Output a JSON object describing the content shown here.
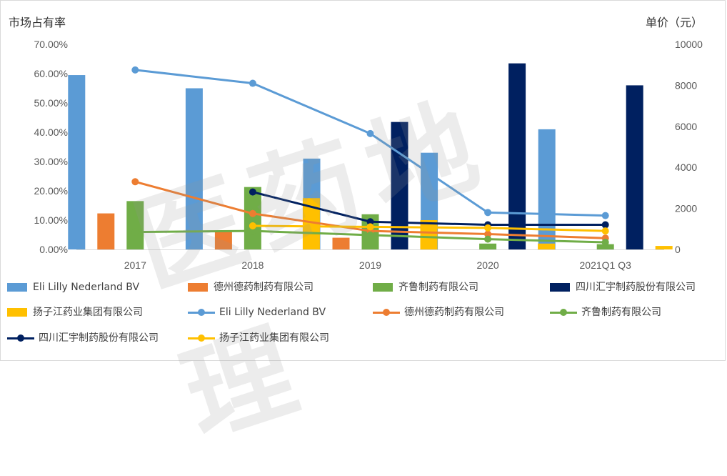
{
  "axis_titles": {
    "left": "市场占有率",
    "right": "单价（元）"
  },
  "chart_data": {
    "type": "bar",
    "categories": [
      "2017",
      "2018",
      "2019",
      "2020",
      "2021Q1 Q3"
    ],
    "left_axis": {
      "min": 0,
      "max": 0.7,
      "ticks": [
        "0.00%",
        "10.00%",
        "20.00%",
        "30.00%",
        "40.00%",
        "50.00%",
        "60.00%",
        "70.00%"
      ]
    },
    "right_axis": {
      "min": 0,
      "max": 10000,
      "ticks": [
        "0",
        "2000",
        "4000",
        "6000",
        "8000",
        "10000"
      ]
    },
    "bar_series": [
      {
        "name": "Eli Lilly Nederland BV",
        "color": "#5b9bd5",
        "values": [
          0.595,
          0.55,
          0.31,
          0.33,
          0.41
        ]
      },
      {
        "name": "德州德药制药有限公司",
        "color": "#ed7d31",
        "values": [
          0.123,
          0.06,
          0.04,
          0.0,
          0.0
        ]
      },
      {
        "name": "齐鲁制药有限公司",
        "color": "#70ad47",
        "values": [
          0.165,
          0.213,
          0.12,
          0.02,
          0.018
        ]
      },
      {
        "name": "四川汇宇制药股份有限公司",
        "color": "#002060",
        "values": [
          null,
          null,
          0.435,
          0.635,
          0.56
        ]
      },
      {
        "name": "扬子江药业集团有限公司",
        "color": "#ffc000",
        "values": [
          null,
          0.175,
          0.1,
          0.02,
          0.012
        ]
      }
    ],
    "line_series": [
      {
        "name": "Eli Lilly Nederland BV",
        "color": "#5b9bd5",
        "values": [
          8750,
          8100,
          5650,
          1800,
          1650
        ]
      },
      {
        "name": "德州德药制药有限公司",
        "color": "#ed7d31",
        "values": [
          3300,
          1750,
          900,
          750,
          550
        ]
      },
      {
        "name": "齐鲁制药有限公司",
        "color": "#70ad47",
        "values": [
          850,
          900,
          700,
          500,
          350
        ]
      },
      {
        "name": "四川汇宇制药股份有限公司",
        "color": "#002060",
        "values": [
          null,
          2800,
          1350,
          1200,
          1200
        ]
      },
      {
        "name": "扬子江药业集团有限公司",
        "color": "#ffc000",
        "values": [
          null,
          1150,
          1100,
          1050,
          900
        ]
      }
    ]
  },
  "watermark": "医药地理"
}
